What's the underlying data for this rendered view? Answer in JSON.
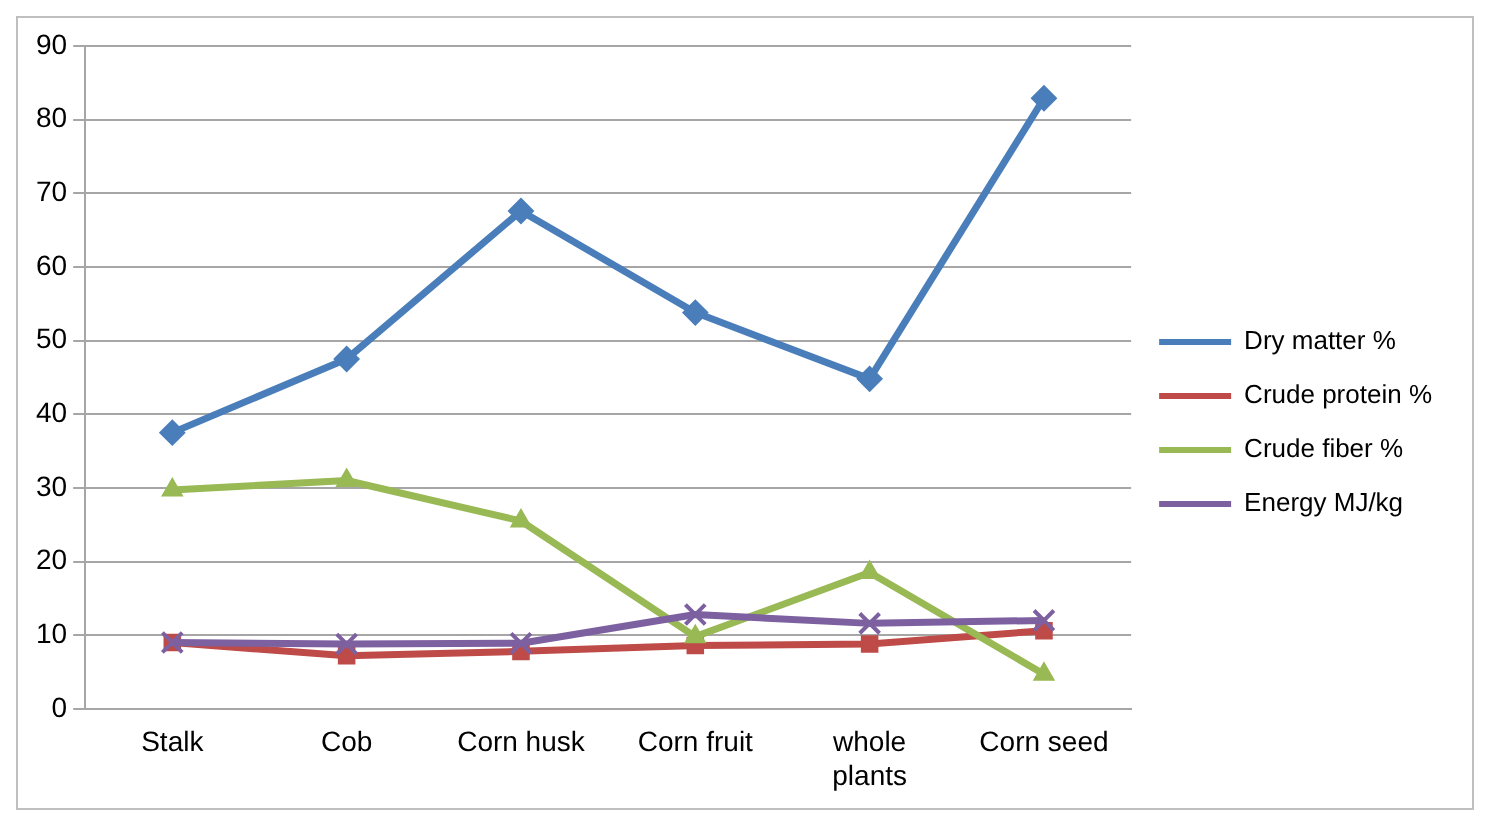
{
  "chart_data": {
    "type": "line",
    "categories": [
      "Stalk",
      "Cob",
      "Corn husk",
      "Corn fruit",
      "whole plants",
      "Corn seed"
    ],
    "series": [
      {
        "name": "Dry matter %",
        "color": "#4a7ebb",
        "marker": "diamond",
        "values": [
          37.5,
          47.5,
          67.6,
          53.8,
          44.8,
          82.9
        ]
      },
      {
        "name": "Crude protein %",
        "color": "#be4b48",
        "marker": "square",
        "values": [
          9.0,
          7.2,
          7.8,
          8.6,
          8.8,
          10.6
        ]
      },
      {
        "name": "Crude fiber %",
        "color": "#98b954",
        "marker": "triangle",
        "values": [
          29.7,
          31.0,
          25.5,
          9.8,
          18.5,
          4.7
        ]
      },
      {
        "name": "Energy MJ/kg",
        "color": "#7d60a0",
        "marker": "cross",
        "values": [
          9.0,
          8.8,
          8.9,
          12.8,
          11.6,
          12.0
        ]
      }
    ],
    "ylim": [
      0,
      90
    ],
    "yticks": [
      0,
      10,
      20,
      30,
      40,
      50,
      60,
      70,
      80,
      90
    ],
    "grid": "y",
    "legend": "right"
  }
}
